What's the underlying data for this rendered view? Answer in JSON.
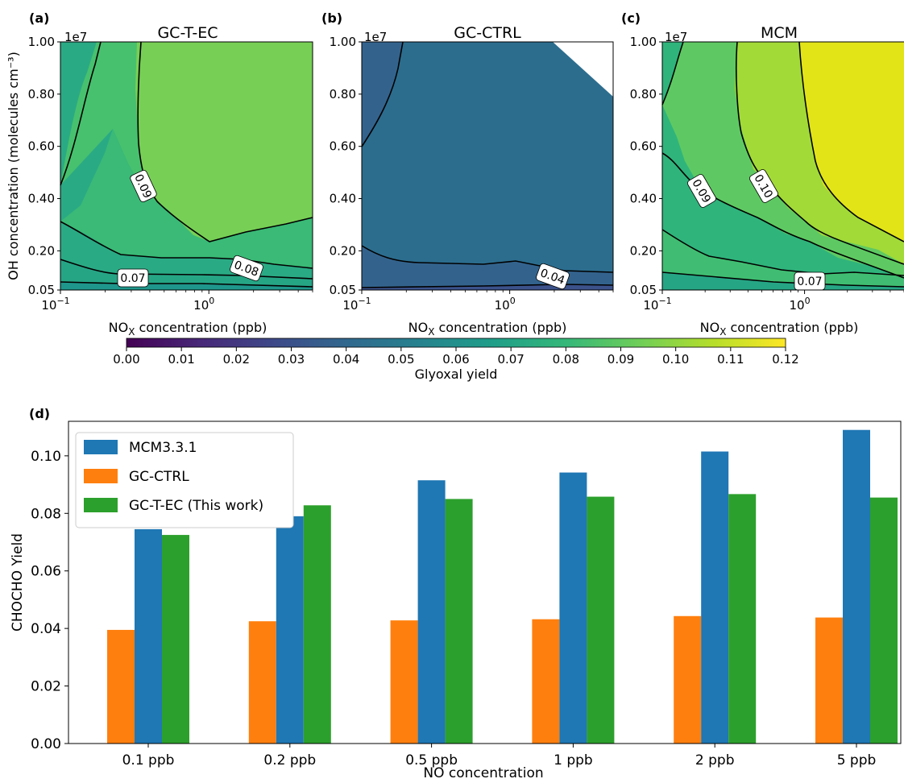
{
  "chart_data": [
    {
      "type": "heatmap",
      "panel": "(a)",
      "title": "GC-T-EC",
      "xlabel": "NOx concentration (ppb)",
      "ylabel": "OH concentration (molecules cm⁻³)",
      "x_scale": "log",
      "xlim": [
        0.1,
        5
      ],
      "ylim": [
        0.05,
        1.0
      ],
      "y_multiplier": "1e7",
      "x_ticks": [
        "10",
        "10"
      ],
      "x_tick_exponents": [
        "−1",
        "0"
      ],
      "y_ticks": [
        "0.05",
        "0.20",
        "0.40",
        "0.60",
        "0.80",
        "1.00"
      ],
      "contour_labels": [
        "0.09",
        "0.08",
        "0.07"
      ],
      "colors": [
        "#2aaa84",
        "#47c16e",
        "#77d055",
        "#3aba76",
        "#26a585",
        "#1f968b"
      ]
    },
    {
      "type": "heatmap",
      "panel": "(b)",
      "title": "GC-CTRL",
      "xlabel": "NOx concentration (ppb)",
      "x_scale": "log",
      "xlim": [
        0.1,
        5
      ],
      "ylim": [
        0.05,
        1.0
      ],
      "y_multiplier": "1e7",
      "x_ticks": [
        "10",
        "10"
      ],
      "x_tick_exponents": [
        "−1",
        "0"
      ],
      "y_ticks": [
        "0.05",
        "0.20",
        "0.40",
        "0.60",
        "0.80",
        "1.00"
      ],
      "contour_labels": [
        "0.04"
      ],
      "colors": [
        "#2c6d8e",
        "#33638d",
        "#3b528b"
      ]
    },
    {
      "type": "heatmap",
      "panel": "(c)",
      "title": "MCM",
      "xlabel": "NOx concentration (ppb)",
      "x_scale": "log",
      "xlim": [
        0.1,
        5
      ],
      "ylim": [
        0.05,
        1.0
      ],
      "y_multiplier": "1e7",
      "x_ticks": [
        "10",
        "10"
      ],
      "x_tick_exponents": [
        "−1",
        "0"
      ],
      "y_ticks": [
        "0.05",
        "0.20",
        "0.40",
        "0.60",
        "0.80",
        "1.00"
      ],
      "contour_labels": [
        "0.09",
        "0.10",
        "0.07"
      ],
      "colors": [
        "#2fb47c",
        "#5ec962",
        "#a2da37",
        "#e2e418",
        "#40bd72",
        "#26a585"
      ]
    },
    {
      "type": "colorbar",
      "label": "Glyoxal yield",
      "range": [
        0.0,
        0.12
      ],
      "ticks": [
        "0.00",
        "0.01",
        "0.02",
        "0.03",
        "0.04",
        "0.05",
        "0.06",
        "0.07",
        "0.08",
        "0.09",
        "0.10",
        "0.11",
        "0.12"
      ],
      "colormap_stops": [
        "#440154",
        "#482878",
        "#3e4989",
        "#31688e",
        "#26828e",
        "#1f9e89",
        "#35b779",
        "#6ece58",
        "#b5de2b",
        "#fde725"
      ]
    },
    {
      "type": "bar",
      "panel": "(d)",
      "categories": [
        "0.1 ppb",
        "0.2 ppb",
        "0.5 ppb",
        "1 ppb",
        "2 ppb",
        "5 ppb"
      ],
      "series": [
        {
          "name": "MCM3.3.1",
          "values": [
            0.0745,
            0.079,
            0.0915,
            0.0942,
            0.1015,
            0.109
          ],
          "color": "#1f77b4"
        },
        {
          "name": "GC-CTRL",
          "values": [
            0.0395,
            0.0425,
            0.0428,
            0.0432,
            0.0443,
            0.0438
          ],
          "color": "#ff7f0e"
        },
        {
          "name": "GC-T-EC (This work)",
          "values": [
            0.0725,
            0.0828,
            0.085,
            0.0858,
            0.0867,
            0.0855
          ],
          "color": "#2ca02c"
        }
      ],
      "xlabel": "NO concentration",
      "ylabel": "CHOCHO Yield",
      "ylim": [
        0,
        0.112
      ],
      "yticks": [
        "0.00",
        "0.02",
        "0.04",
        "0.06",
        "0.08",
        "0.10"
      ],
      "legend_position": "top-left"
    }
  ]
}
